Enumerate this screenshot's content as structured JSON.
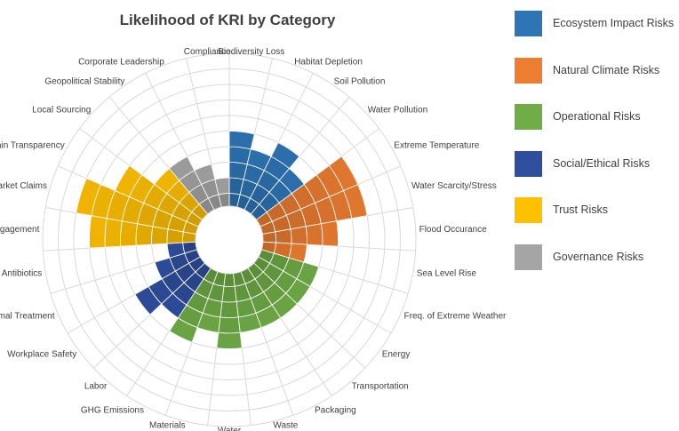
{
  "chart_data": {
    "type": "polar-bar",
    "title": "Likelihood of KRI by Category",
    "categories": [
      {
        "label": "Biodiversity Loss",
        "group": "ecosystem",
        "value": 5
      },
      {
        "label": "Habitat Depletion",
        "group": "ecosystem",
        "value": 4
      },
      {
        "label": "Soil Pollution",
        "group": "ecosystem",
        "value": 5
      },
      {
        "label": "Water Pollution",
        "group": "ecosystem",
        "value": 4
      },
      {
        "label": "Extreme Temperature",
        "group": "climate",
        "value": 7
      },
      {
        "label": "Water Scarcity/Stress",
        "group": "climate",
        "value": 7
      },
      {
        "label": "Flood Occurance",
        "group": "climate",
        "value": 5
      },
      {
        "label": "Sea Level Rise",
        "group": "climate",
        "value": 3
      },
      {
        "label": "Freq. of Extreme Weather",
        "group": "operational",
        "value": 4
      },
      {
        "label": "Energy",
        "group": "operational",
        "value": 4
      },
      {
        "label": "Transportation",
        "group": "operational",
        "value": 4
      },
      {
        "label": "Packaging",
        "group": "operational",
        "value": 4
      },
      {
        "label": "Waste",
        "group": "operational",
        "value": 4
      },
      {
        "label": "Water",
        "group": "operational",
        "value": 5
      },
      {
        "label": "Materials",
        "group": "operational",
        "value": 4
      },
      {
        "label": "GHG Emissions",
        "group": "operational",
        "value": 5
      },
      {
        "label": "Labor",
        "group": "social",
        "value": 4
      },
      {
        "label": "Workplace Safety",
        "group": "social",
        "value": 5
      },
      {
        "label": "Animal Treatment",
        "group": "social",
        "value": 3
      },
      {
        "label": "Antibiotics",
        "group": "social",
        "value": 2
      },
      {
        "label": "Engagement",
        "group": "trust",
        "value": 7
      },
      {
        "label": "Market Claims",
        "group": "trust",
        "value": 8
      },
      {
        "label": "Supply Chain Transparency",
        "group": "trust",
        "value": 6
      },
      {
        "label": "Local Sourcing",
        "group": "trust",
        "value": 4
      },
      {
        "label": "Geopolitical Stability",
        "group": "governance",
        "value": 4
      },
      {
        "label": "Corporate Leadership",
        "group": "governance",
        "value": 3
      },
      {
        "label": "Compliance",
        "group": "governance",
        "value": 2
      }
    ],
    "rlim": [
      0,
      10
    ],
    "grid": true,
    "legend_position": "right",
    "groups": [
      {
        "id": "ecosystem",
        "name": "Ecosystem Impact Risks",
        "color": "#2E75B6"
      },
      {
        "id": "climate",
        "name": "Natural Climate Risks",
        "color": "#ED7D31"
      },
      {
        "id": "operational",
        "name": "Operational Risks",
        "color": "#70AD47"
      },
      {
        "id": "social",
        "name": "Social/Ethical Risks",
        "color": "#2F4F9E"
      },
      {
        "id": "trust",
        "name": "Trust Risks",
        "color": "#FFC000"
      },
      {
        "id": "governance",
        "name": "Governance Risks",
        "color": "#A5A5A5"
      }
    ]
  },
  "legend": {
    "items": [
      {
        "label": "Ecosystem Impact Risks",
        "color": "#2E75B6"
      },
      {
        "label": "Natural Climate Risks",
        "color": "#ED7D31"
      },
      {
        "label": "Operational Risks",
        "color": "#70AD47"
      },
      {
        "label": "Social/Ethical Risks",
        "color": "#2F4F9E"
      },
      {
        "label": "Trust Risks",
        "color": "#FFC000"
      },
      {
        "label": "Governance Risks",
        "color": "#A5A5A5"
      }
    ]
  }
}
